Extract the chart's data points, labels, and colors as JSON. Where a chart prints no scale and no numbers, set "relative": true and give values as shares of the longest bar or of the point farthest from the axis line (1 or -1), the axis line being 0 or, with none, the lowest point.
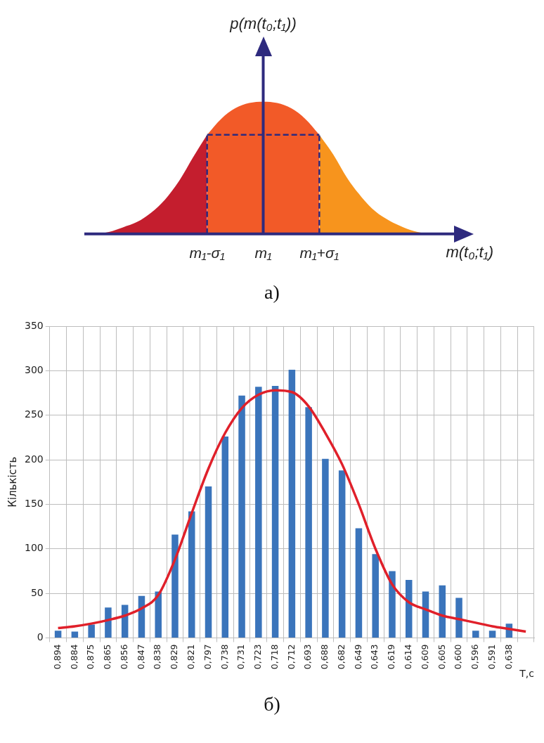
{
  "chart_data": [
    {
      "type": "area",
      "relative": true,
      "xlabel": "m(t₀;t₁)",
      "ylabel": "p(m(t₀;t₁))",
      "annotations": [
        "a)"
      ],
      "tick_labels": "x",
      "grid": false,
      "legend": false,
      "categories": [
        null,
        null,
        null,
        null,
        null,
        null,
        null,
        null,
        "m₁-σ₁",
        null,
        null,
        null,
        "m₁",
        null,
        null,
        null,
        "m₁+σ₁",
        null,
        null,
        null,
        null,
        null,
        null,
        null,
        null
      ],
      "ref_lines": [
        {
          "axis": "y",
          "value": 0,
          "color": "#2e2a7e"
        },
        {
          "axis": "x",
          "value": "m₁",
          "color": "#2e2a7e"
        },
        {
          "axis": "x",
          "value": "m₁-σ₁",
          "color": "#2e2a7e",
          "line_style": "dashed"
        },
        {
          "axis": "x",
          "value": "m₁+σ₁",
          "color": "#2e2a7e",
          "line_style": "dashed"
        }
      ],
      "series": [
        {
          "color": "#c41e2e",
          "values": [
            0,
            0.015,
            0.05,
            0.09,
            0.16,
            0.26,
            0.4,
            0.58,
            0.75,
            null,
            null,
            null,
            null,
            null,
            null,
            null,
            null,
            null,
            null,
            null,
            null,
            null,
            null,
            null,
            null
          ]
        },
        {
          "color": "#f25a28",
          "values": [
            null,
            null,
            null,
            null,
            null,
            null,
            null,
            null,
            0.75,
            0.87,
            0.95,
            0.99,
            1,
            0.99,
            0.95,
            0.87,
            0.75,
            null,
            null,
            null,
            null,
            null,
            null,
            null,
            null
          ]
        },
        {
          "color": "#f7941d",
          "values": [
            null,
            null,
            null,
            null,
            null,
            null,
            null,
            null,
            null,
            null,
            null,
            null,
            null,
            null,
            null,
            null,
            0.75,
            0.6,
            0.42,
            0.28,
            0.17,
            0.1,
            0.05,
            0.015,
            0
          ]
        },
        {
          "type": "line",
          "color": "#2e2a7e",
          "line_style": "dashed",
          "values": [
            null,
            null,
            null,
            null,
            null,
            null,
            null,
            null,
            0.75,
            0.75,
            0.75,
            0.75,
            0.75,
            0.75,
            0.75,
            0.75,
            0.75,
            null,
            null,
            null,
            null,
            null,
            null,
            null,
            null
          ]
        }
      ]
    },
    {
      "type": "bar",
      "xlabel": "T,c",
      "ylabel": "Кількість",
      "annotations": [
        "б)"
      ],
      "ylim": [
        0,
        350
      ],
      "yticks": [
        0,
        50,
        100,
        150,
        200,
        250,
        300,
        350
      ],
      "grid": true,
      "legend": false,
      "categories": [
        "0,894",
        "0,884",
        "0,875",
        "0,865",
        "0,856",
        "0,847",
        "0,838",
        "0,829",
        "0,821",
        "0,797",
        "0,738",
        "0,731",
        "0,723",
        "0,718",
        "0,712",
        "0,693",
        "0,688",
        "0,682",
        "0,649",
        "0,643",
        "0,619",
        "0,614",
        "0,609",
        "0,605",
        "0,600",
        "0,596",
        "0,591",
        "0,638",
        null
      ],
      "series": [
        {
          "color": "#3a74bb",
          "values": [
            8,
            7,
            15,
            34,
            37,
            47,
            52,
            116,
            142,
            170,
            226,
            272,
            282,
            283,
            301,
            259,
            201,
            188,
            123,
            94,
            75,
            65,
            52,
            59,
            45,
            8,
            8,
            16,
            null
          ]
        },
        {
          "type": "line",
          "color": "#e0202a",
          "values": [
            11,
            13,
            16,
            20,
            25,
            33,
            48,
            88,
            140,
            190,
            230,
            258,
            273,
            278,
            276,
            260,
            230,
            195,
            150,
            100,
            60,
            40,
            32,
            25,
            21,
            17,
            13,
            10,
            7
          ]
        }
      ]
    }
  ]
}
